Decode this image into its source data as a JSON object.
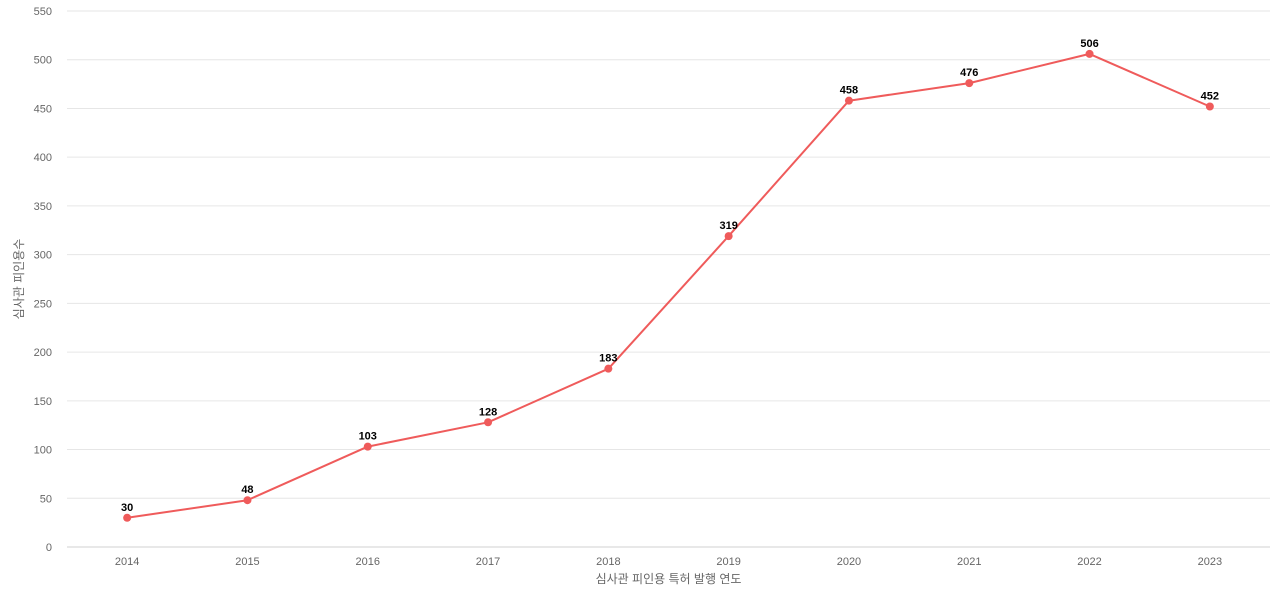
{
  "chart_data": {
    "type": "line",
    "title": "",
    "xlabel": "심사관 피인용 특허 발행 연도",
    "ylabel": "심사관 피인용수",
    "x": [
      "2014",
      "2015",
      "2016",
      "2017",
      "2018",
      "2019",
      "2020",
      "2021",
      "2022",
      "2023"
    ],
    "series": [
      {
        "values": [
          30,
          48,
          103,
          128,
          183,
          319,
          458,
          476,
          506,
          452
        ],
        "color": "#ef5b5b"
      }
    ],
    "ylim": [
      0,
      550
    ],
    "yticks": [
      0,
      50,
      100,
      150,
      200,
      250,
      300,
      350,
      400,
      450,
      500,
      550
    ],
    "grid": true,
    "legend": "none"
  }
}
